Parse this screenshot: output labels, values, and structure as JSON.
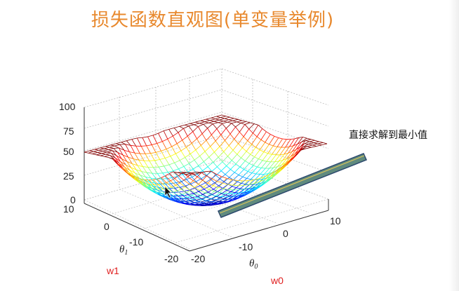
{
  "slide": {
    "title": "损失函数直观图(单变量举例)",
    "callout": "直接求解到最小值"
  },
  "chart_data": {
    "type": "surface",
    "title": "",
    "z_ticks": [
      "100",
      "75",
      "50",
      "25",
      "0"
    ],
    "theta1_ticks": [
      "10",
      "0",
      "-10",
      "-20"
    ],
    "theta0_ticks": [
      "-20",
      "-10",
      "0",
      "10"
    ],
    "xlabel": "θ1",
    "xlabel_main": "θ",
    "xlabel_sub": "1",
    "ylabel": "θ0",
    "ylabel_main": "θ",
    "ylabel_sub": "0",
    "w1_label": "w1",
    "w0_label": "w0",
    "zlim": [
      0,
      100
    ],
    "theta1_range": [
      -20,
      10
    ],
    "theta0_range": [
      -20,
      10
    ],
    "grid": true,
    "colormap": "jet",
    "arrow_color": "#5f8a7e"
  }
}
